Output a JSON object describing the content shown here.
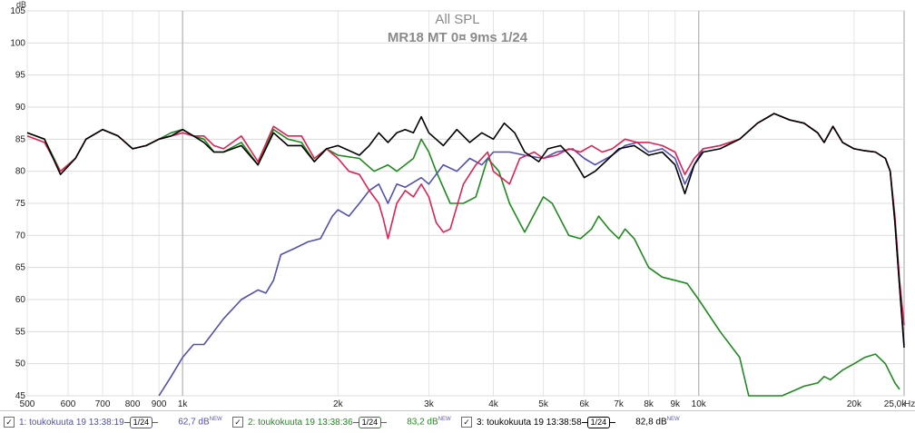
{
  "chart_data": {
    "type": "line",
    "title": "All SPL",
    "subtitle": "MR18 MT 0¤ 9ms 1/24",
    "ylabel": "dB",
    "xunit": "Hz",
    "xscale": "log",
    "xlim": [
      500,
      25000
    ],
    "ylim": [
      45,
      105
    ],
    "grid": true,
    "x_ticks": [
      {
        "v": 500,
        "label": "500"
      },
      {
        "v": 600,
        "label": "600"
      },
      {
        "v": 700,
        "label": "700"
      },
      {
        "v": 800,
        "label": "800"
      },
      {
        "v": 900,
        "label": "900"
      },
      {
        "v": 1000,
        "label": "1k"
      },
      {
        "v": 2000,
        "label": "2k"
      },
      {
        "v": 3000,
        "label": "3k"
      },
      {
        "v": 4000,
        "label": "4k"
      },
      {
        "v": 5000,
        "label": "5k"
      },
      {
        "v": 6000,
        "label": "6k"
      },
      {
        "v": 7000,
        "label": "7k"
      },
      {
        "v": 8000,
        "label": "8k"
      },
      {
        "v": 9000,
        "label": "9k"
      },
      {
        "v": 10000,
        "label": "10k"
      },
      {
        "v": 20000,
        "label": "20k"
      },
      {
        "v": 25000,
        "label": "25,0k"
      }
    ],
    "y_ticks": [
      45,
      50,
      55,
      60,
      65,
      70,
      75,
      80,
      85,
      90,
      95,
      100,
      105
    ],
    "series": [
      {
        "name": "1: toukokuuta 19 13:38:19",
        "color": "#5050b0",
        "points": [
          [
            900,
            45
          ],
          [
            950,
            48
          ],
          [
            1000,
            51
          ],
          [
            1050,
            53
          ],
          [
            1100,
            53
          ],
          [
            1200,
            57
          ],
          [
            1300,
            60
          ],
          [
            1400,
            61.5
          ],
          [
            1450,
            61
          ],
          [
            1500,
            63
          ],
          [
            1550,
            67
          ],
          [
            1650,
            68
          ],
          [
            1750,
            69
          ],
          [
            1850,
            69.5
          ],
          [
            1950,
            73
          ],
          [
            2000,
            74
          ],
          [
            2100,
            73
          ],
          [
            2200,
            75
          ],
          [
            2300,
            77
          ],
          [
            2400,
            78
          ],
          [
            2500,
            75
          ],
          [
            2600,
            78
          ],
          [
            2700,
            77.5
          ],
          [
            2900,
            79
          ],
          [
            3000,
            78
          ],
          [
            3200,
            81
          ],
          [
            3400,
            80
          ],
          [
            3600,
            82
          ],
          [
            3800,
            81
          ],
          [
            4000,
            83
          ],
          [
            4300,
            83
          ],
          [
            4600,
            82.5
          ],
          [
            5000,
            82
          ],
          [
            5300,
            83
          ],
          [
            5700,
            83.5
          ],
          [
            6000,
            82
          ],
          [
            6300,
            81
          ],
          [
            6800,
            82.5
          ],
          [
            7200,
            84
          ],
          [
            7600,
            84.5
          ],
          [
            8000,
            83
          ],
          [
            8500,
            83.5
          ],
          [
            9000,
            82
          ],
          [
            9400,
            78
          ],
          [
            9800,
            81
          ],
          [
            10200,
            83.5
          ],
          [
            11000,
            84
          ],
          [
            12000,
            85
          ],
          [
            13000,
            87.5
          ],
          [
            14000,
            89
          ],
          [
            15000,
            88
          ],
          [
            16000,
            87.5
          ],
          [
            17000,
            86
          ],
          [
            17500,
            84.5
          ],
          [
            18200,
            87
          ],
          [
            19000,
            84.5
          ],
          [
            20000,
            83.5
          ],
          [
            21000,
            83.2
          ],
          [
            22000,
            83
          ],
          [
            23000,
            82
          ],
          [
            23500,
            80
          ],
          [
            24000,
            72
          ],
          [
            24500,
            62
          ],
          [
            25000,
            53
          ]
        ]
      },
      {
        "name": "2: toukokuuta 19 13:38:36",
        "color": "#1f8a1f",
        "points": [
          [
            500,
            86
          ],
          [
            540,
            85
          ],
          [
            580,
            80
          ],
          [
            620,
            82
          ],
          [
            650,
            85
          ],
          [
            700,
            86.5
          ],
          [
            750,
            85.5
          ],
          [
            800,
            83.5
          ],
          [
            850,
            84
          ],
          [
            900,
            85
          ],
          [
            950,
            86
          ],
          [
            1000,
            86.5
          ],
          [
            1050,
            85.5
          ],
          [
            1100,
            85
          ],
          [
            1150,
            83
          ],
          [
            1200,
            83
          ],
          [
            1300,
            84.5
          ],
          [
            1400,
            81
          ],
          [
            1500,
            86.5
          ],
          [
            1600,
            85
          ],
          [
            1700,
            84.5
          ],
          [
            1800,
            81.5
          ],
          [
            1900,
            83.5
          ],
          [
            2000,
            82.5
          ],
          [
            2200,
            82
          ],
          [
            2350,
            80
          ],
          [
            2500,
            81
          ],
          [
            2600,
            80
          ],
          [
            2800,
            82
          ],
          [
            2900,
            85
          ],
          [
            3000,
            83
          ],
          [
            3100,
            80
          ],
          [
            3300,
            75
          ],
          [
            3500,
            75
          ],
          [
            3700,
            76
          ],
          [
            3900,
            82
          ],
          [
            4100,
            80
          ],
          [
            4300,
            75
          ],
          [
            4600,
            70.5
          ],
          [
            5000,
            76
          ],
          [
            5200,
            75
          ],
          [
            5600,
            70
          ],
          [
            5900,
            69.5
          ],
          [
            6200,
            71
          ],
          [
            6400,
            73
          ],
          [
            6700,
            71
          ],
          [
            7000,
            69.5
          ],
          [
            7200,
            71
          ],
          [
            7500,
            69.5
          ],
          [
            8000,
            65
          ],
          [
            8500,
            63.5
          ],
          [
            9000,
            63
          ],
          [
            9500,
            62.5
          ],
          [
            10000,
            60
          ],
          [
            11000,
            55
          ],
          [
            12000,
            51
          ],
          [
            12500,
            45
          ],
          [
            13500,
            44
          ],
          [
            14500,
            45
          ],
          [
            15500,
            46
          ],
          [
            16000,
            46.5
          ],
          [
            17000,
            47
          ],
          [
            17500,
            48
          ],
          [
            18000,
            47.5
          ],
          [
            19000,
            49
          ],
          [
            20000,
            50
          ],
          [
            21000,
            51
          ],
          [
            22000,
            51.5
          ],
          [
            23000,
            50
          ],
          [
            24000,
            47
          ],
          [
            24500,
            46
          ]
        ]
      },
      {
        "name": "3: toukokuuta 19 13:38:58",
        "color": "#000000",
        "points": [
          [
            500,
            86
          ],
          [
            540,
            85
          ],
          [
            580,
            79.5
          ],
          [
            620,
            82
          ],
          [
            650,
            85
          ],
          [
            700,
            86.5
          ],
          [
            750,
            85.5
          ],
          [
            800,
            83.5
          ],
          [
            850,
            84
          ],
          [
            900,
            85
          ],
          [
            950,
            85.5
          ],
          [
            1000,
            86.5
          ],
          [
            1050,
            85.5
          ],
          [
            1100,
            84.5
          ],
          [
            1150,
            83
          ],
          [
            1200,
            83
          ],
          [
            1300,
            84
          ],
          [
            1400,
            81
          ],
          [
            1500,
            86
          ],
          [
            1600,
            84
          ],
          [
            1700,
            84
          ],
          [
            1800,
            81.5
          ],
          [
            1900,
            83.5
          ],
          [
            2000,
            84
          ],
          [
            2200,
            82.5
          ],
          [
            2300,
            84
          ],
          [
            2400,
            86
          ],
          [
            2500,
            84.5
          ],
          [
            2600,
            86
          ],
          [
            2700,
            86.5
          ],
          [
            2800,
            86
          ],
          [
            2900,
            88.5
          ],
          [
            3000,
            86
          ],
          [
            3200,
            84
          ],
          [
            3400,
            86.5
          ],
          [
            3600,
            84.5
          ],
          [
            3800,
            86
          ],
          [
            4000,
            85
          ],
          [
            4200,
            87.5
          ],
          [
            4400,
            86
          ],
          [
            4600,
            83
          ],
          [
            4900,
            81.5
          ],
          [
            5100,
            83.5
          ],
          [
            5400,
            84
          ],
          [
            5700,
            82
          ],
          [
            6000,
            79
          ],
          [
            6300,
            80
          ],
          [
            6700,
            82
          ],
          [
            7000,
            83.5
          ],
          [
            7500,
            84
          ],
          [
            8000,
            82.5
          ],
          [
            8500,
            83
          ],
          [
            9000,
            81
          ],
          [
            9400,
            76.5
          ],
          [
            9800,
            81
          ],
          [
            10200,
            83
          ],
          [
            11000,
            83.5
          ],
          [
            12000,
            85
          ],
          [
            13000,
            87.5
          ],
          [
            14000,
            89
          ],
          [
            15000,
            88
          ],
          [
            16000,
            87.5
          ],
          [
            17000,
            86
          ],
          [
            17500,
            84.5
          ],
          [
            18200,
            87
          ],
          [
            19000,
            84.5
          ],
          [
            20000,
            83.5
          ],
          [
            21000,
            83.2
          ],
          [
            22000,
            83
          ],
          [
            23000,
            82
          ],
          [
            23500,
            80
          ],
          [
            24000,
            72
          ],
          [
            24500,
            62
          ],
          [
            25000,
            52.5
          ]
        ]
      },
      {
        "name": "",
        "color": "#dd2255",
        "points": [
          [
            500,
            85.5
          ],
          [
            540,
            84.5
          ],
          [
            580,
            80
          ],
          [
            620,
            82
          ],
          [
            650,
            85
          ],
          [
            700,
            86.5
          ],
          [
            750,
            85.5
          ],
          [
            800,
            83.5
          ],
          [
            850,
            84
          ],
          [
            900,
            85
          ],
          [
            950,
            85.5
          ],
          [
            1000,
            86
          ],
          [
            1050,
            85.5
          ],
          [
            1100,
            85.5
          ],
          [
            1150,
            84
          ],
          [
            1200,
            83.5
          ],
          [
            1300,
            85.5
          ],
          [
            1400,
            81.5
          ],
          [
            1500,
            87
          ],
          [
            1600,
            85.5
          ],
          [
            1700,
            85.5
          ],
          [
            1800,
            82
          ],
          [
            1900,
            83.5
          ],
          [
            2000,
            82
          ],
          [
            2100,
            80
          ],
          [
            2200,
            79.5
          ],
          [
            2300,
            77
          ],
          [
            2400,
            75
          ],
          [
            2450,
            72.5
          ],
          [
            2500,
            69.5
          ],
          [
            2600,
            75
          ],
          [
            2700,
            77
          ],
          [
            2800,
            76
          ],
          [
            2900,
            78
          ],
          [
            3000,
            76
          ],
          [
            3100,
            72
          ],
          [
            3200,
            70.5
          ],
          [
            3300,
            71
          ],
          [
            3500,
            78
          ],
          [
            3700,
            81
          ],
          [
            3900,
            83
          ],
          [
            4000,
            80
          ],
          [
            4300,
            78
          ],
          [
            4500,
            82
          ],
          [
            4800,
            83
          ],
          [
            5000,
            82
          ],
          [
            5300,
            82.5
          ],
          [
            5600,
            83.5
          ],
          [
            5900,
            83
          ],
          [
            6200,
            84
          ],
          [
            6500,
            83
          ],
          [
            6800,
            83.5
          ],
          [
            7200,
            85
          ],
          [
            7600,
            84.5
          ],
          [
            8000,
            84.5
          ],
          [
            8500,
            84
          ],
          [
            9000,
            83
          ],
          [
            9400,
            79.5
          ],
          [
            9800,
            82
          ],
          [
            10200,
            83.5
          ],
          [
            11000,
            84
          ],
          [
            12000,
            85
          ],
          [
            13000,
            87.5
          ],
          [
            14000,
            89
          ],
          [
            15000,
            88
          ],
          [
            16000,
            87.5
          ],
          [
            17000,
            86
          ],
          [
            17500,
            84.5
          ],
          [
            18200,
            87
          ],
          [
            19000,
            84.5
          ],
          [
            20000,
            83.5
          ],
          [
            21000,
            83.2
          ],
          [
            22000,
            83
          ],
          [
            23000,
            82
          ],
          [
            23500,
            80
          ],
          [
            24000,
            73
          ],
          [
            24500,
            63
          ],
          [
            25000,
            56
          ]
        ]
      }
    ]
  },
  "legend": [
    {
      "check": "✓",
      "name": "1: toukokuuta 19 13:38:19",
      "smoothing": "1/24",
      "level": "62,7 dB",
      "new": "NEW",
      "color": "#5050b0"
    },
    {
      "check": "✓",
      "name": "2: toukokuuta 19 13:38:36",
      "smoothing": "1/24",
      "level": "83,2 dB",
      "new": "NEW",
      "color": "#1f8a1f"
    },
    {
      "check": "✓",
      "name": "3: toukokuuta 19 13:38:58",
      "smoothing": "1/24",
      "level": "82,8 dB",
      "new": "NEW",
      "color": "#000000"
    }
  ]
}
